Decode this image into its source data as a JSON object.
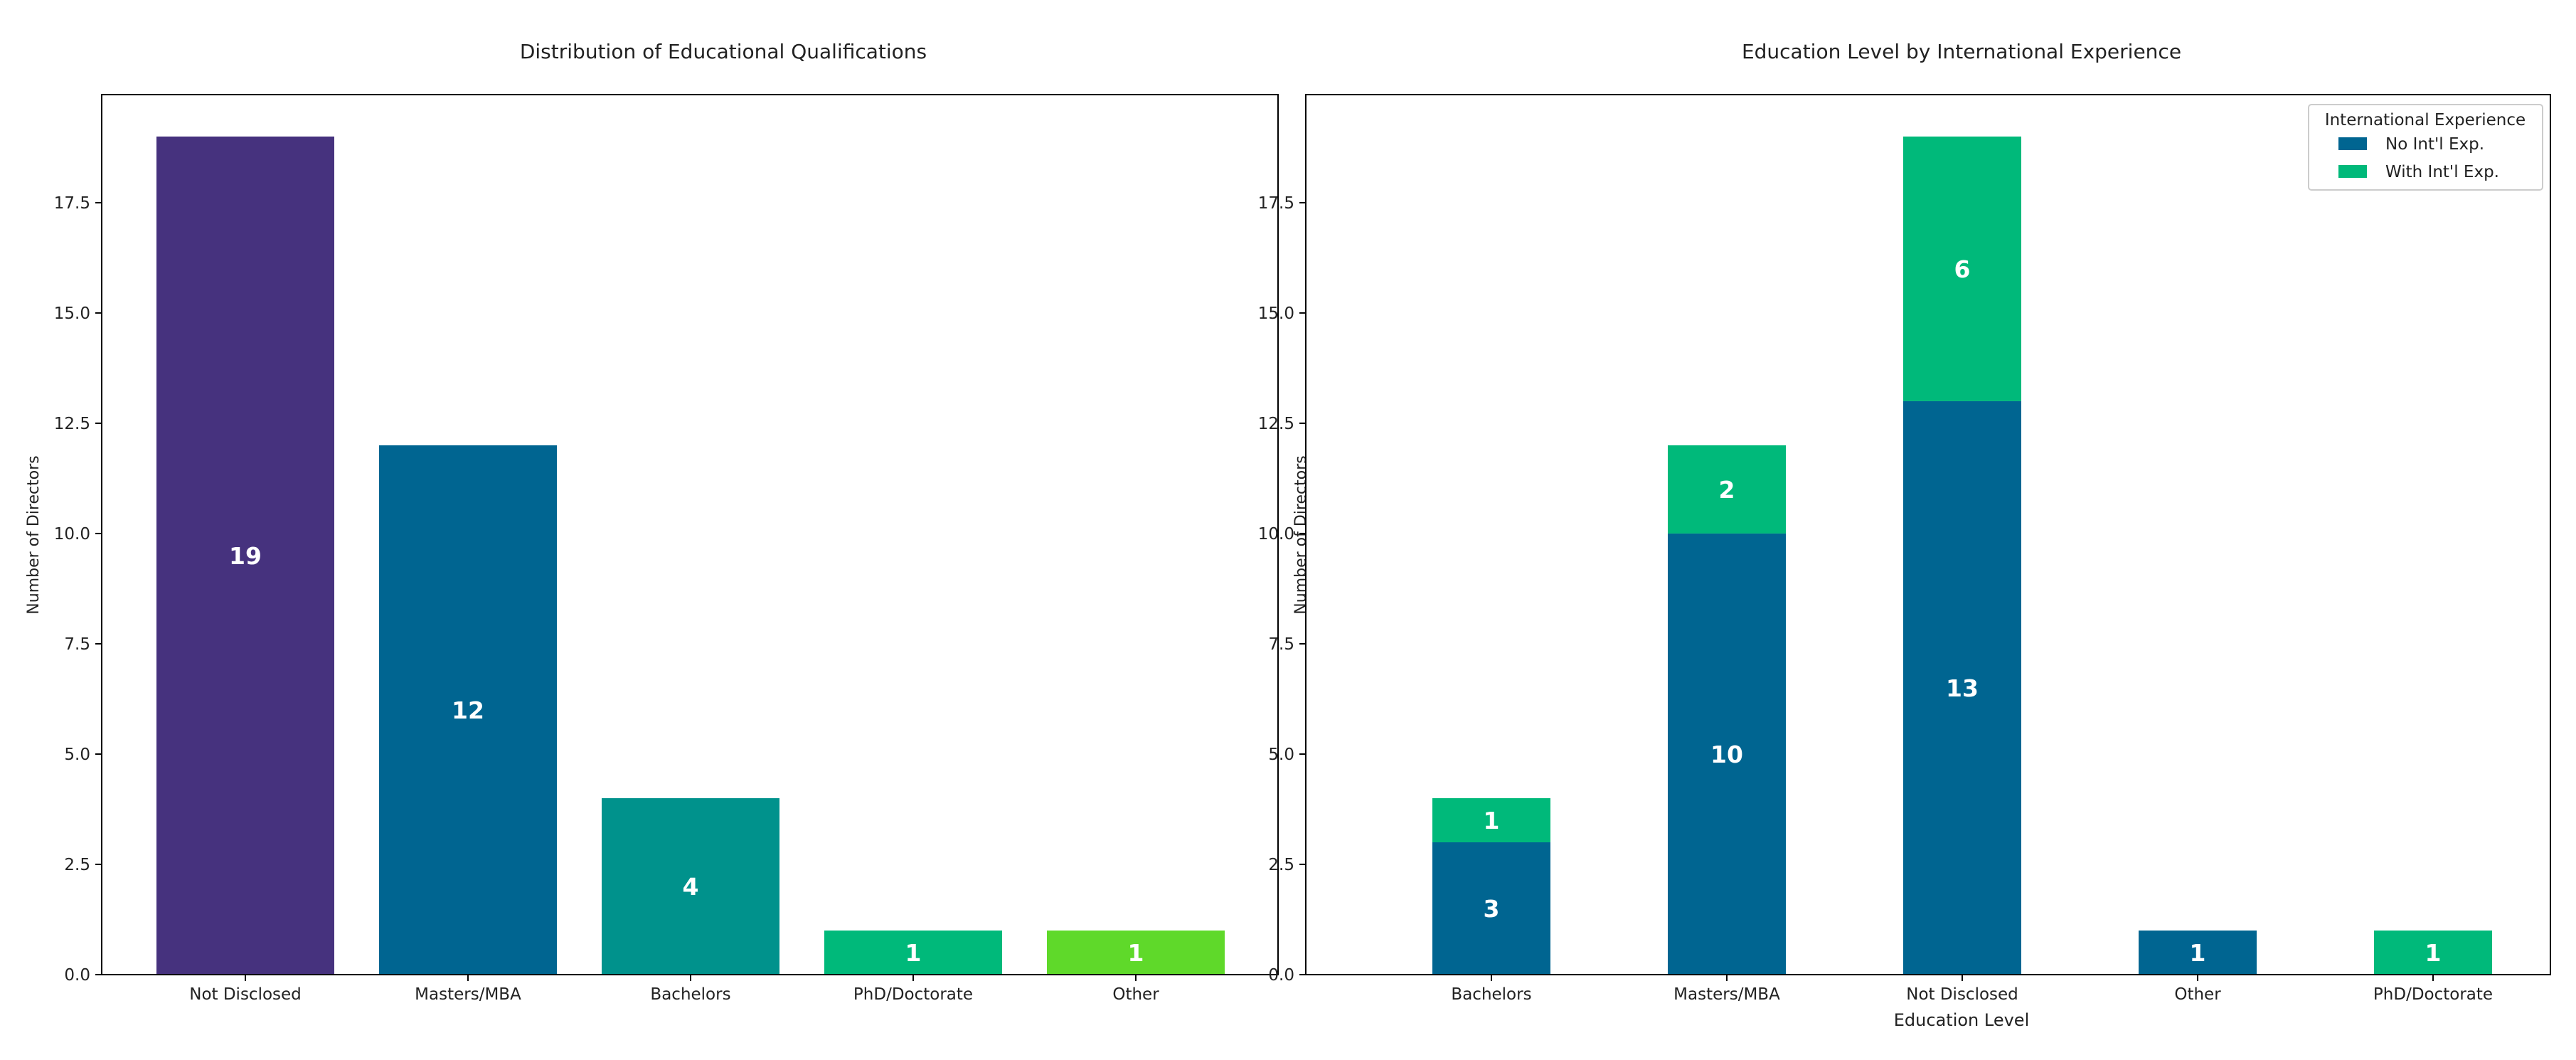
{
  "chart_data": [
    {
      "type": "bar",
      "title": "Distribution of Educational Qualifications",
      "xlabel": "",
      "ylabel": "Number of Directors",
      "ylim": [
        0,
        19.95
      ],
      "yticks": [
        "0.0",
        "2.5",
        "5.0",
        "7.5",
        "10.0",
        "12.5",
        "15.0",
        "17.5"
      ],
      "categories": [
        "Not Disclosed",
        "Masters/MBA",
        "Bachelors",
        "PhD/Doctorate",
        "Other"
      ],
      "values": [
        19,
        12,
        4,
        1,
        1
      ],
      "colors": [
        "#46327e",
        "#006591",
        "#00928c",
        "#00b97a",
        "#5fd92a"
      ]
    },
    {
      "type": "bar",
      "stacked": true,
      "title": "Education Level by International Experience",
      "xlabel": "Education Level",
      "ylabel": "Number of Directors",
      "ylim": [
        0,
        19.95
      ],
      "yticks": [
        "0.0",
        "2.5",
        "5.0",
        "7.5",
        "10.0",
        "12.5",
        "15.0",
        "17.5"
      ],
      "categories": [
        "Bachelors",
        "Masters/MBA",
        "Not Disclosed",
        "Other",
        "PhD/Doctorate"
      ],
      "legend_title": "International Experience",
      "legend_position": "top-right",
      "series": [
        {
          "name": "No Int'l Exp.",
          "color": "#006591",
          "values": [
            3,
            10,
            13,
            1,
            0
          ]
        },
        {
          "name": "With Int'l Exp.",
          "color": "#00b97a",
          "values": [
            1,
            2,
            6,
            0,
            1
          ]
        }
      ]
    }
  ]
}
